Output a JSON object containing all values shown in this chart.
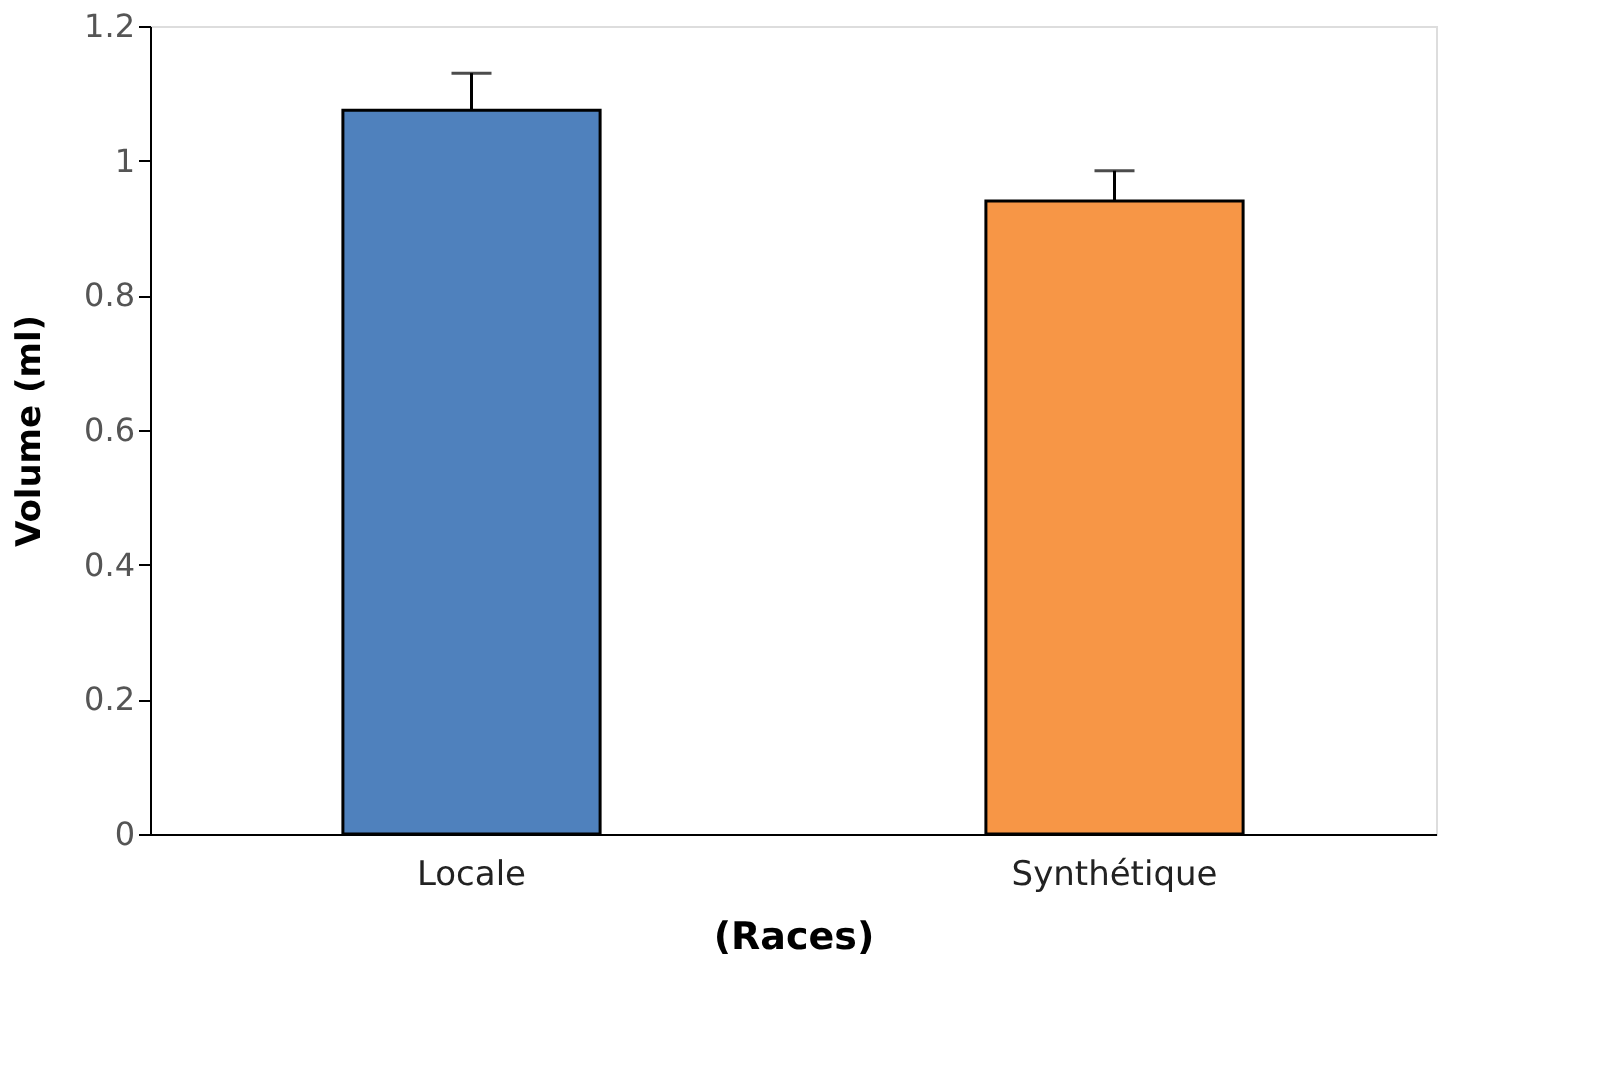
{
  "chart_data": {
    "type": "bar",
    "xlabel": "(Races)",
    "ylabel": "Volume (ml)",
    "categories": [
      "Locale",
      "Synthétique"
    ],
    "values": [
      1.075,
      0.94
    ],
    "colors": [
      "#4f81bd",
      "#f79646"
    ],
    "errors": [
      [
        1.075,
        1.13
      ],
      [
        0.94,
        0.985
      ]
    ],
    "ylim": [
      0,
      1.2
    ],
    "yticks": [
      0,
      0.2,
      0.4,
      0.6,
      0.8,
      1,
      1.2
    ],
    "grid": false,
    "legend": false
  }
}
